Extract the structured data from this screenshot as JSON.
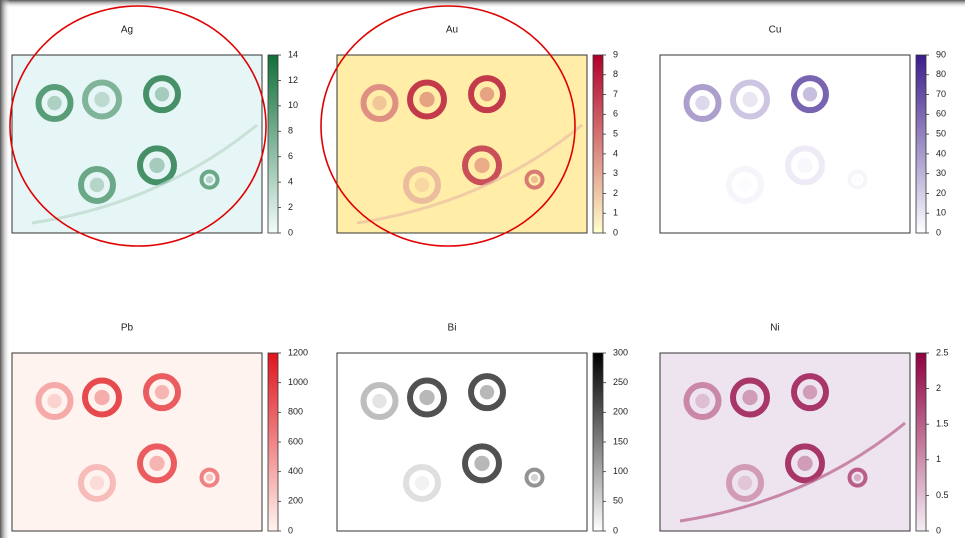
{
  "chart_data": [
    {
      "type": "heatmap",
      "title": "Ag",
      "clim": [
        0,
        14
      ],
      "cticks": [
        0,
        2,
        4,
        6,
        8,
        10,
        12,
        14
      ],
      "colors": [
        "#f2fbfb",
        "#12703a"
      ],
      "background": "#e6f5f6"
    },
    {
      "type": "heatmap",
      "title": "Au",
      "clim": [
        0,
        9
      ],
      "cticks": [
        0,
        1,
        2,
        3,
        4,
        5,
        6,
        7,
        8,
        9
      ],
      "colors": [
        "#ffffcc",
        "#b0002a"
      ],
      "background": "#ffeda8"
    },
    {
      "type": "heatmap",
      "title": "Cu",
      "clim": [
        0,
        90
      ],
      "cticks": [
        0,
        10,
        20,
        30,
        40,
        50,
        60,
        70,
        80,
        90
      ],
      "colors": [
        "#ffffff",
        "#3b1c8c"
      ],
      "background": "#ffffff"
    },
    {
      "type": "heatmap",
      "title": "Pb",
      "clim": [
        0,
        1200
      ],
      "cticks": [
        0,
        200,
        400,
        600,
        800,
        1000,
        1200
      ],
      "colors": [
        "#fff5f0",
        "#e0141c"
      ],
      "background": "#fff3ef"
    },
    {
      "type": "heatmap",
      "title": "Bi",
      "clim": [
        0,
        300
      ],
      "cticks": [
        0,
        50,
        100,
        150,
        200,
        250,
        300
      ],
      "colors": [
        "#ffffff",
        "#000000"
      ],
      "background": "#ffffff"
    },
    {
      "type": "heatmap",
      "title": "Ni",
      "clim": [
        0,
        2.5
      ],
      "cticks": [
        0,
        0.5,
        1,
        1.5,
        2,
        2.5
      ],
      "colors": [
        "#f4eef6",
        "#91003f"
      ],
      "background": "#ede4f0"
    }
  ]
}
